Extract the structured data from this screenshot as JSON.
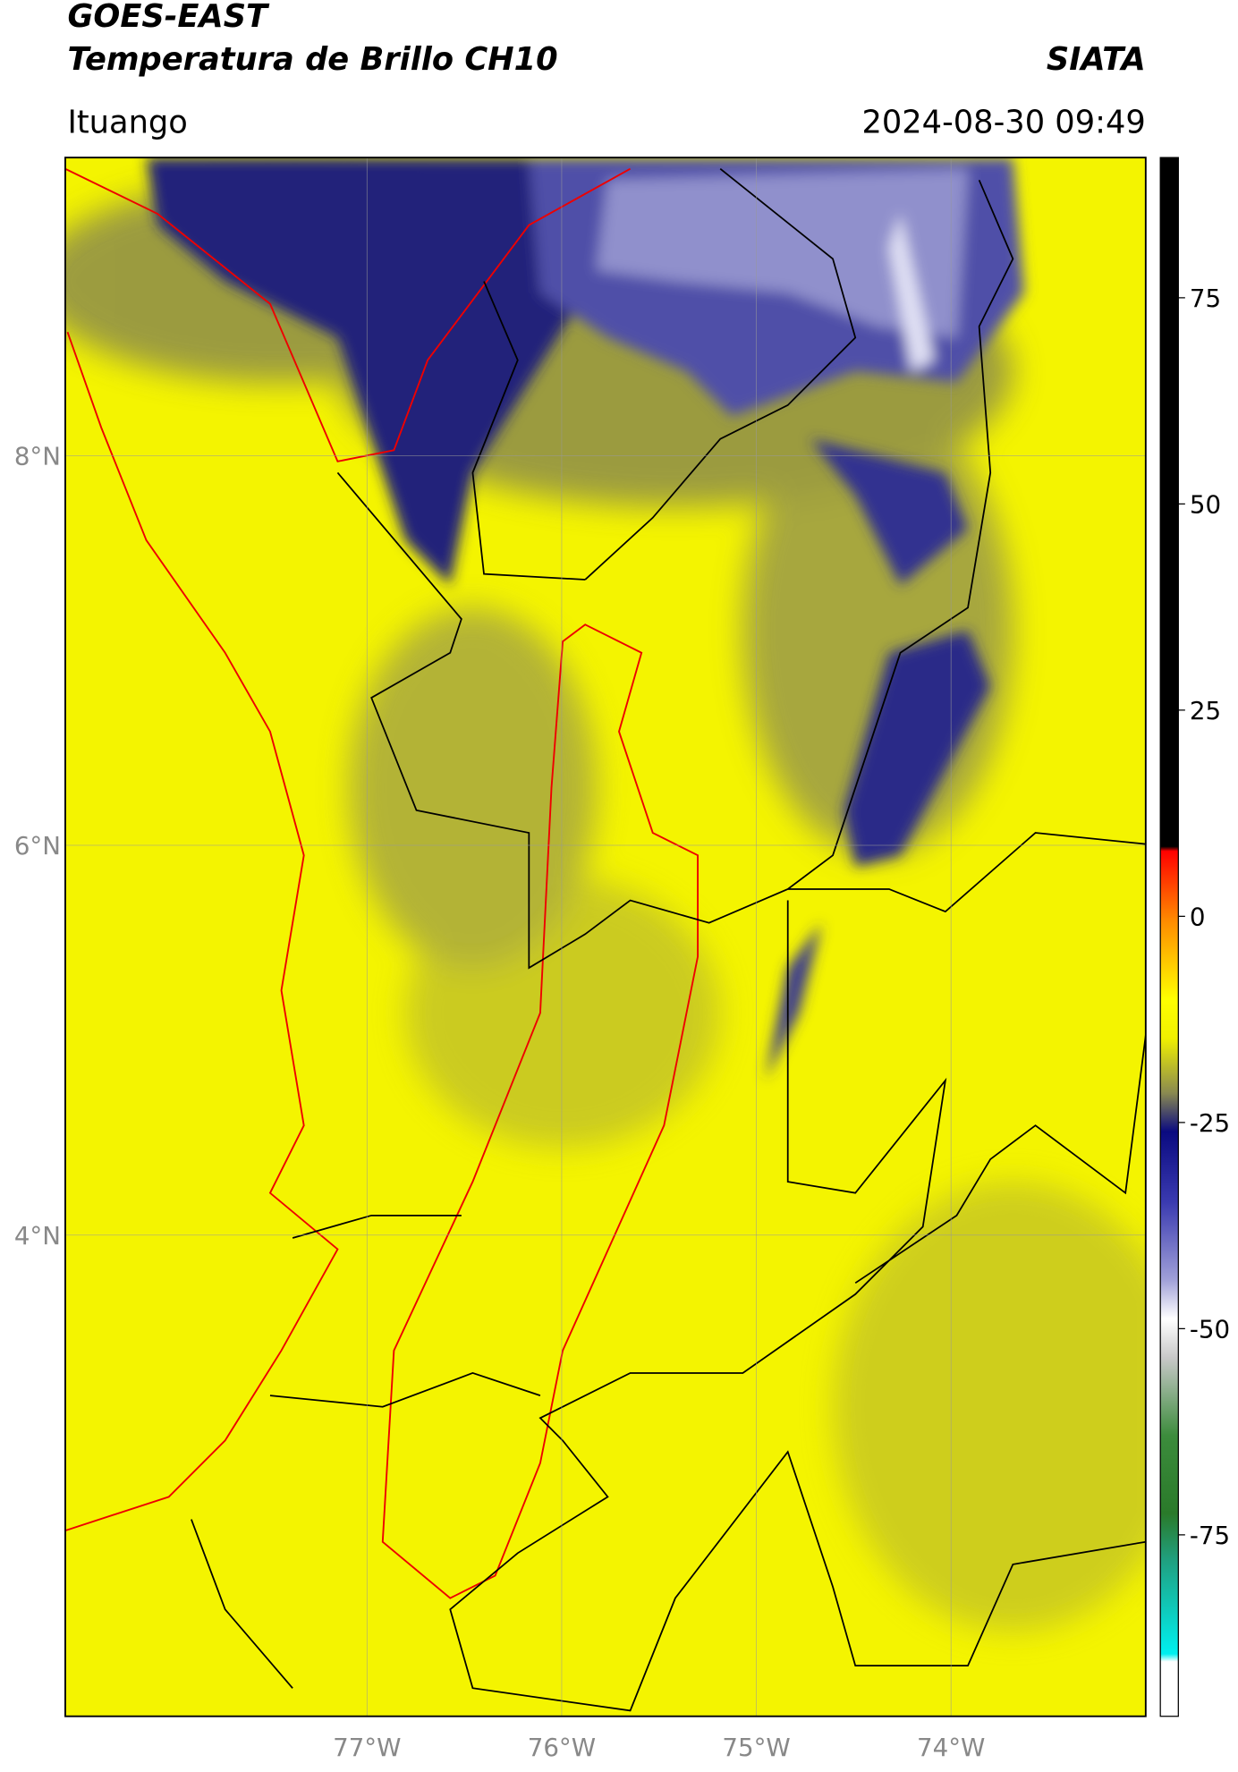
{
  "header": {
    "title": "GOES-EAST",
    "subtitle": "Temperatura de Brillo CH10",
    "agency": "SIATA",
    "location": "Ituango",
    "datetime": "2024-08-30 09:49"
  },
  "map": {
    "xlim": [
      -78.55,
      -73.0
    ],
    "ylim": [
      1.53,
      9.53
    ],
    "xticks": [
      {
        "value": -77,
        "label": "77°W"
      },
      {
        "value": -76,
        "label": "76°W"
      },
      {
        "value": -75,
        "label": "75°W"
      },
      {
        "value": -74,
        "label": "74°W"
      }
    ],
    "yticks": [
      {
        "value": 8,
        "label": "8°N"
      },
      {
        "value": 6,
        "label": "6°N"
      },
      {
        "value": 4,
        "label": "4°N"
      }
    ]
  },
  "colorbar": {
    "lim": [
      -97,
      92
    ],
    "ticks": [
      75,
      50,
      25,
      0,
      -25,
      -50,
      -75
    ]
  }
}
